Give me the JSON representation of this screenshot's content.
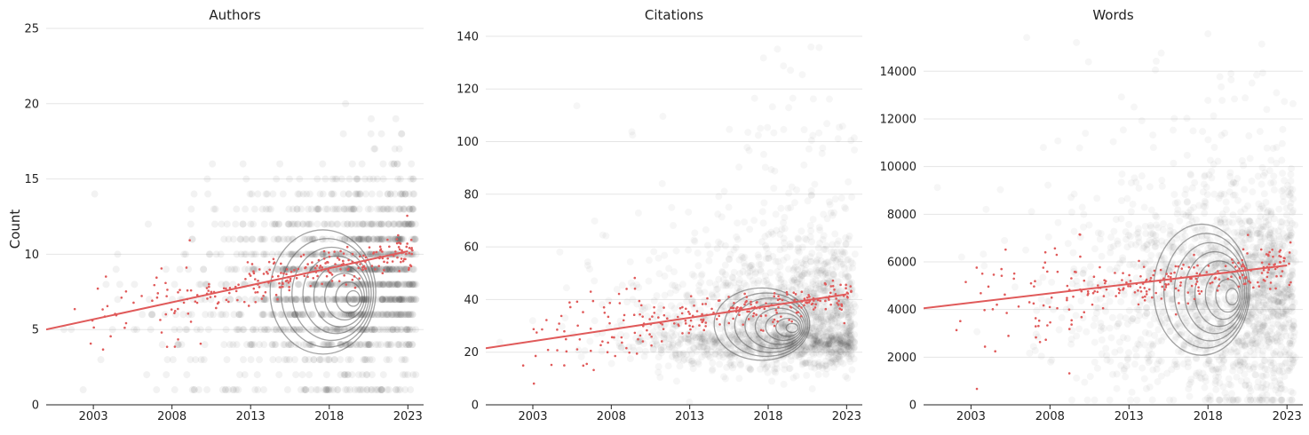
{
  "figure": {
    "ylabel": "Count"
  },
  "chart_data": [
    {
      "type": "scatter",
      "title": "Authors",
      "xlabel": "",
      "ylabel": "Count",
      "xlim": [
        2000,
        2024
      ],
      "ylim": [
        0,
        25
      ],
      "xticks": [
        2003,
        2008,
        2013,
        2018,
        2023
      ],
      "yticks": [
        0,
        5,
        10,
        15,
        20,
        25
      ],
      "grid": "y",
      "trend": {
        "x": [
          2000,
          2023
        ],
        "y": [
          5.0,
          10.2
        ]
      },
      "colors": {
        "points": "#000000",
        "trend": "#e05a5a",
        "contour": "#555555"
      }
    },
    {
      "type": "scatter",
      "title": "Citations",
      "xlabel": "",
      "ylabel": "",
      "xlim": [
        2000,
        2024
      ],
      "ylim": [
        0,
        143
      ],
      "xticks": [
        2003,
        2008,
        2013,
        2018,
        2023
      ],
      "yticks": [
        0,
        20,
        40,
        60,
        80,
        100,
        120,
        140
      ],
      "grid": "y",
      "trend": {
        "x": [
          2000,
          2023
        ],
        "y": [
          21.5,
          42
        ]
      },
      "colors": {
        "points": "#000000",
        "trend": "#e05a5a",
        "contour": "#555555"
      }
    },
    {
      "type": "scatter",
      "title": "Words",
      "xlabel": "",
      "ylabel": "",
      "xlim": [
        2000,
        2024
      ],
      "ylim": [
        0,
        15800
      ],
      "xticks": [
        2003,
        2008,
        2013,
        2018,
        2023
      ],
      "yticks": [
        0,
        2000,
        4000,
        6000,
        8000,
        10000,
        12000,
        14000
      ],
      "grid": "y",
      "trend": {
        "x": [
          2000,
          2023
        ],
        "y": [
          4050,
          5850
        ]
      },
      "colors": {
        "points": "#000000",
        "trend": "#e05a5a",
        "contour": "#555555"
      }
    }
  ]
}
